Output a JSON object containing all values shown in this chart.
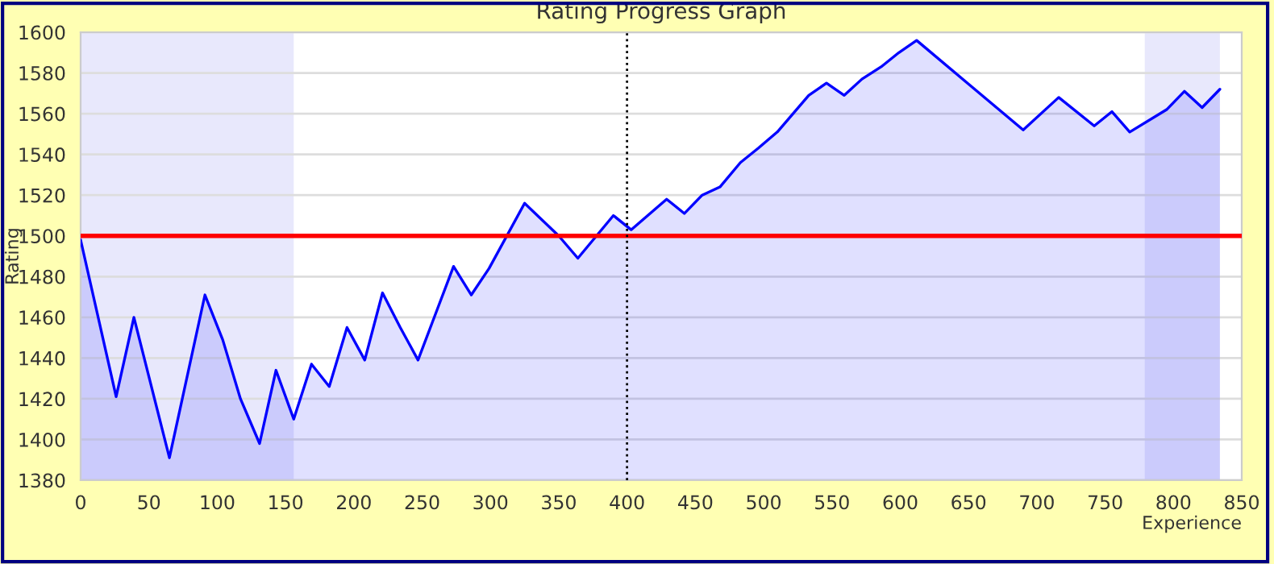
{
  "chart_data": {
    "type": "area",
    "title": "Rating Progress Graph",
    "xlabel": "Experience",
    "ylabel": "Rating",
    "series": [
      {
        "color": "#0000ff",
        "x": [
          0,
          26,
          39,
          65,
          91,
          104,
          117,
          131,
          143,
          156,
          169,
          182,
          195,
          208,
          221,
          234,
          247,
          260,
          273,
          286,
          299,
          325,
          350,
          364,
          390,
          403,
          429,
          442,
          455,
          468,
          483,
          496,
          510,
          533,
          546,
          559,
          572,
          586,
          599,
          612,
          651,
          690,
          716,
          742,
          755,
          768,
          795,
          808,
          821,
          834
        ],
        "values": [
          1498,
          1421,
          1460,
          1391,
          1471,
          1449,
          1420,
          1398,
          1434,
          1410,
          1437,
          1426,
          1455,
          1439,
          1472,
          1455,
          1439,
          1462,
          1485,
          1471,
          1484,
          1516,
          1500,
          1489,
          1510,
          1503,
          1518,
          1511,
          1520,
          1524,
          1536,
          1543,
          1551,
          1569,
          1575,
          1569,
          1577,
          1583,
          1590,
          1596,
          1574,
          1552,
          1568,
          1554,
          1561,
          1551,
          1562,
          1571,
          1563,
          1572
        ]
      }
    ],
    "bands": [
      {
        "axis": "x",
        "from": 0,
        "to": 156,
        "color": "#e8e8fc"
      },
      {
        "axis": "x",
        "from": 779,
        "to": 834,
        "color": "#e8e8fc"
      }
    ],
    "ref_lines": [
      {
        "axis": "y",
        "value": 1500,
        "color": "#ff0000",
        "line_style": "solid"
      },
      {
        "axis": "x",
        "value": 400,
        "color": "#000000",
        "line_style": "dotted"
      }
    ],
    "xlim": [
      0,
      850
    ],
    "ylim": [
      1380,
      1600
    ],
    "xticks": [
      0,
      50,
      100,
      150,
      200,
      250,
      300,
      350,
      400,
      450,
      500,
      550,
      600,
      650,
      700,
      750,
      800,
      850
    ],
    "yticks": [
      1380,
      1400,
      1420,
      1440,
      1460,
      1480,
      1500,
      1520,
      1540,
      1560,
      1580,
      1600
    ],
    "grid": "y",
    "legend": false
  }
}
